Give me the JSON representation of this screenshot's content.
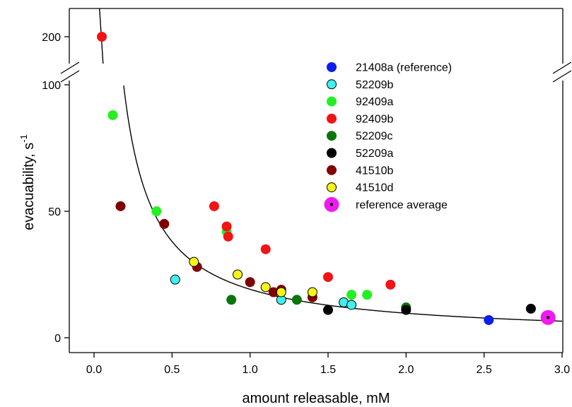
{
  "chart_data": {
    "type": "scatter",
    "xlabel": "amount releasable, mM",
    "ylabel": "evacuability, s",
    "ylabel_superscript": "-1",
    "xlim": [
      -0.15,
      3.0
    ],
    "x_ticks": [
      "0.0",
      "0.5",
      "1.0",
      "1.5",
      "2.0",
      "2.5",
      "3.0"
    ],
    "x_tick_values": [
      0,
      0.5,
      1.0,
      1.5,
      2.0,
      2.5,
      3.0
    ],
    "y_ticks_lower": [
      "0",
      "50",
      "100"
    ],
    "y_tick_values_lower": [
      0,
      50,
      100
    ],
    "y_ticks_upper": [
      "200"
    ],
    "y_tick_values_upper": [
      200
    ],
    "ylim_lower": [
      -3,
      100
    ],
    "ylim_upper": [
      185,
      215
    ],
    "axis_break": true,
    "grid": false,
    "legend_position": "top-right",
    "series": [
      {
        "name": "21408a (reference)",
        "color": "#0a1ff0",
        "edge": "#0a1ff0",
        "points": [
          [
            2.53,
            7
          ]
        ]
      },
      {
        "name": "52209b",
        "color": "#3ff0ee",
        "edge": "#000000",
        "points": [
          [
            0.52,
            23
          ],
          [
            1.2,
            15
          ],
          [
            1.6,
            14
          ],
          [
            1.65,
            13
          ]
        ]
      },
      {
        "name": "92409a",
        "color": "#22f022",
        "edge": "#22f022",
        "points": [
          [
            0.12,
            88
          ],
          [
            0.4,
            50
          ],
          [
            0.85,
            42
          ],
          [
            1.65,
            17
          ],
          [
            1.75,
            17
          ]
        ]
      },
      {
        "name": "92409b",
        "color": "#f01414",
        "edge": "#f01414",
        "points": [
          [
            0.05,
            200
          ],
          [
            0.77,
            52
          ],
          [
            0.85,
            44
          ],
          [
            0.86,
            40
          ],
          [
            1.1,
            35
          ],
          [
            1.5,
            24
          ],
          [
            1.9,
            21
          ]
        ]
      },
      {
        "name": "52209c",
        "color": "#0a750a",
        "edge": "#0a750a",
        "points": [
          [
            0.88,
            15
          ],
          [
            1.3,
            15
          ],
          [
            2.0,
            12
          ]
        ]
      },
      {
        "name": "52209a",
        "color": "#000000",
        "edge": "#000000",
        "points": [
          [
            1.5,
            11
          ],
          [
            2.0,
            11
          ],
          [
            2.8,
            11.5
          ]
        ]
      },
      {
        "name": "41510b",
        "color": "#800000",
        "edge": "#800000",
        "points": [
          [
            0.17,
            52
          ],
          [
            0.45,
            45
          ],
          [
            0.66,
            28
          ],
          [
            1.0,
            22
          ],
          [
            1.15,
            18
          ],
          [
            1.2,
            19
          ],
          [
            1.4,
            16
          ]
        ]
      },
      {
        "name": "41510d",
        "color": "#f5f51a",
        "edge": "#000000",
        "points": [
          [
            0.64,
            30
          ],
          [
            0.92,
            25
          ],
          [
            1.1,
            20
          ],
          [
            1.2,
            18
          ],
          [
            1.4,
            18
          ]
        ]
      },
      {
        "name": "reference average",
        "color": "#f01af0",
        "edge": "#f01af0",
        "center_dot": "#000000",
        "points": [
          [
            2.91,
            8
          ]
        ]
      }
    ],
    "fit_curve": {
      "type": "hyperbola",
      "color": "#000000"
    }
  }
}
